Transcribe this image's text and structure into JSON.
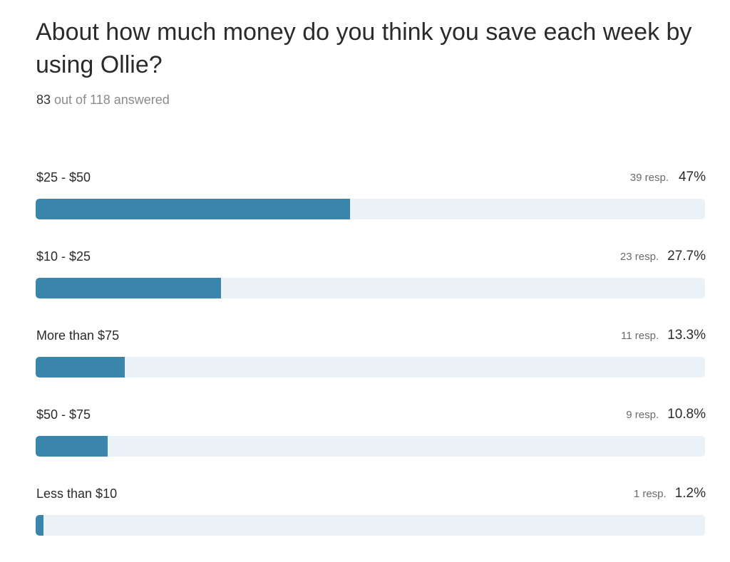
{
  "question": {
    "title": "About how much money do you think you save each week by using Ollie?",
    "answered_count": "83",
    "answered_suffix": " out of 118 answered"
  },
  "colors": {
    "bar_fill": "#3a85ac",
    "bar_track": "#ebf2f7"
  },
  "chart_data": {
    "type": "bar",
    "orientation": "horizontal",
    "title": "About how much money do you think you save each week by using Ollie?",
    "categories": [
      "$25 - $50",
      "$10 - $25",
      "More than $75",
      "$50 - $75",
      "Less than $10"
    ],
    "values": [
      47,
      27.7,
      13.3,
      10.8,
      1.2
    ],
    "xlim": [
      0,
      100
    ],
    "grid": false,
    "options": [
      {
        "label": "$25 - $50",
        "responses": "39 resp.",
        "percent_label": "47%",
        "percent": 47
      },
      {
        "label": "$10 - $25",
        "responses": "23 resp.",
        "percent_label": "27.7%",
        "percent": 27.7
      },
      {
        "label": "More than $75",
        "responses": "11 resp.",
        "percent_label": "13.3%",
        "percent": 13.3
      },
      {
        "label": "$50 - $75",
        "responses": "9 resp.",
        "percent_label": "10.8%",
        "percent": 10.8
      },
      {
        "label": "Less than $10",
        "responses": "1 resp.",
        "percent_label": "1.2%",
        "percent": 1.2
      }
    ]
  }
}
